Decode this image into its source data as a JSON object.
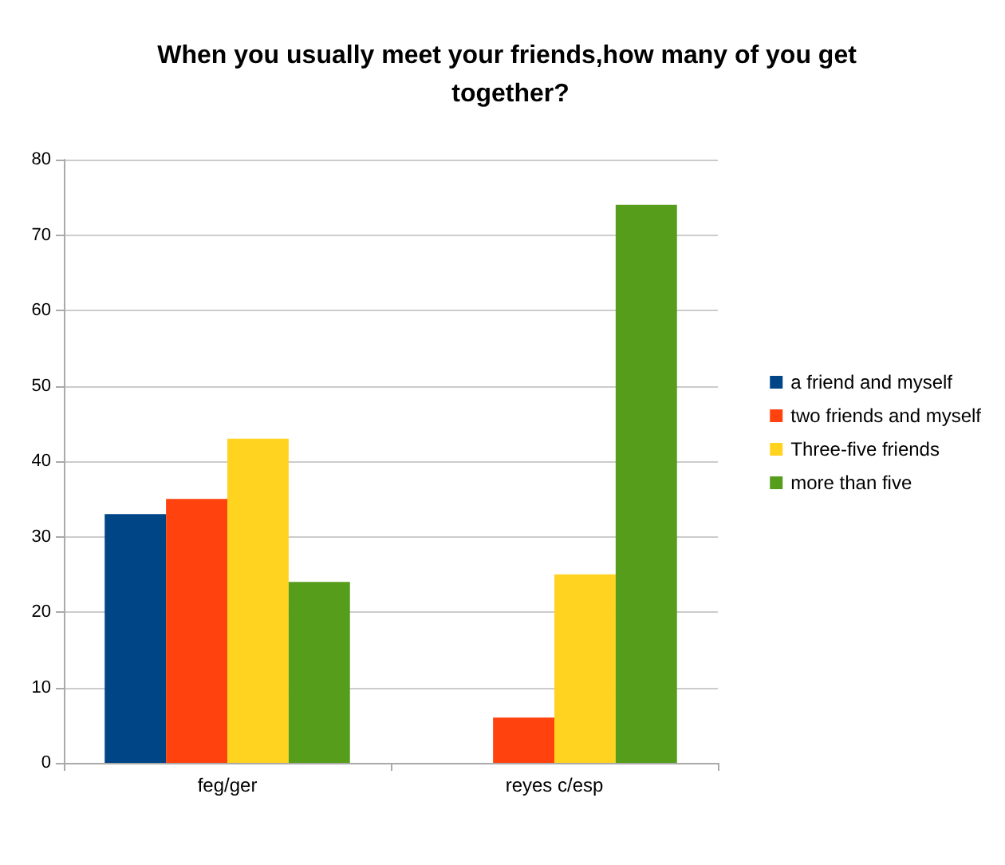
{
  "chart_data": {
    "type": "bar",
    "title": "When you usually meet your friends,how many of you get together?",
    "categories": [
      "feg/ger",
      "reyes c/esp"
    ],
    "series": [
      {
        "name": "a friend and myself",
        "color": "#004586",
        "values": [
          33,
          0
        ]
      },
      {
        "name": "two friends and myself",
        "color": "#ff420e",
        "values": [
          35,
          6
        ]
      },
      {
        "name": "Three-five friends",
        "color": "#ffd320",
        "values": [
          43,
          25
        ]
      },
      {
        "name": "more than five",
        "color": "#579d1c",
        "values": [
          24,
          74
        ]
      }
    ],
    "ylim": [
      0,
      80
    ],
    "yticks": [
      0,
      10,
      20,
      30,
      40,
      50,
      60,
      70,
      80
    ],
    "grid": "y",
    "legend": "right"
  }
}
